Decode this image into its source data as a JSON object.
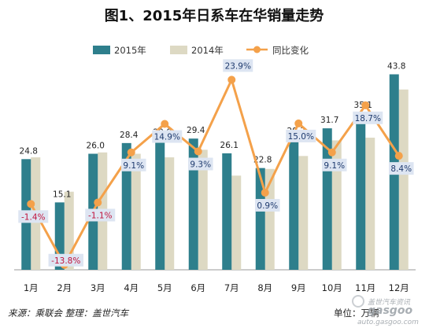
{
  "chart_data": {
    "type": "bar",
    "title": "图1、2015年日系车在华销量走势",
    "categories": [
      "1月",
      "2月",
      "3月",
      "4月",
      "5月",
      "6月",
      "7月",
      "8月",
      "9月",
      "10月",
      "11月",
      "12月"
    ],
    "series": [
      {
        "name": "2015年",
        "type": "bar",
        "color": "#2e7f8c",
        "values": [
          24.8,
          15.1,
          26.0,
          28.4,
          29.0,
          29.4,
          26.1,
          22.8,
          29.3,
          31.7,
          35.1,
          43.8
        ],
        "labels": [
          "24.8",
          "15.1",
          "26.0",
          "28.4",
          "29.0",
          "29.4",
          "26.1",
          "22.8",
          "29.3",
          "31.7",
          "35.1",
          "43.8"
        ]
      },
      {
        "name": "2014年",
        "type": "bar",
        "color": "#ddd9c3",
        "values": [
          25.2,
          17.5,
          26.3,
          26.0,
          25.2,
          26.9,
          21.1,
          22.6,
          25.5,
          29.0,
          29.6,
          40.4
        ]
      },
      {
        "name": "同比变化",
        "type": "line",
        "color": "#f4a14a",
        "values": [
          -1.4,
          -13.8,
          -1.1,
          9.1,
          14.9,
          9.3,
          23.9,
          0.9,
          15.0,
          9.1,
          18.7,
          8.4
        ],
        "labels": [
          "-1.4%",
          "-13.8%",
          "-1.1%",
          "9.1%",
          "14.9%",
          "9.3%",
          "23.9%",
          "0.9%",
          "15.0%",
          "9.1%",
          "18.7%",
          "8.4%"
        ]
      }
    ],
    "bar_ylim": [
      0,
      46
    ],
    "line_ylim": [
      -14.8,
      27.0
    ],
    "legend_position": "top",
    "grid": false
  },
  "footer": {
    "source": "来源：乘联会  整理：盖世汽车",
    "unit": "单位：万辆"
  },
  "watermark": {
    "brand": "gasgoo",
    "cn": "盖世汽车资讯",
    "url": "auto.gasgoo.com"
  },
  "colors": {
    "bar2015": "#2e7f8c",
    "bar2014": "#ddd9c3",
    "line": "#f4a14a",
    "label_box": "#dde5f2",
    "neg_text": "#c0123c",
    "pos_text": "#1f3b6e"
  }
}
